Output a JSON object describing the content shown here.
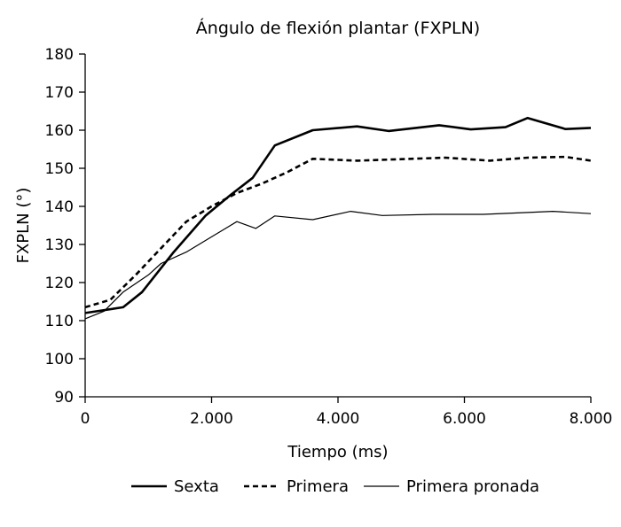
{
  "chart_data": {
    "type": "line",
    "title": "Ángulo de flexión plantar (FXPLN)",
    "xlabel": "Tiempo (ms)",
    "ylabel": "FXPLN (°)",
    "xlim": [
      0,
      8000
    ],
    "ylim": [
      90,
      180
    ],
    "x_ticks": [
      0,
      2000,
      4000,
      6000,
      8000
    ],
    "x_tick_labels": [
      "0",
      "2.000",
      "4.000",
      "6.000",
      "8.000"
    ],
    "y_ticks": [
      90,
      100,
      110,
      120,
      130,
      140,
      150,
      160,
      170,
      180
    ],
    "y_tick_labels": [
      "90",
      "100",
      "110",
      "120",
      "130",
      "140",
      "150",
      "160",
      "170",
      "180"
    ],
    "grid": false,
    "legend_position": "bottom",
    "series": [
      {
        "name": "Sexta",
        "line_style": "thick-solid",
        "color": "#000000",
        "points": [
          [
            0,
            112
          ],
          [
            600,
            113.5
          ],
          [
            900,
            117.5
          ],
          [
            1400,
            128
          ],
          [
            1900,
            137.5
          ],
          [
            2300,
            143
          ],
          [
            2650,
            147.5
          ],
          [
            3000,
            156
          ],
          [
            3600,
            160
          ],
          [
            4300,
            161
          ],
          [
            4800,
            159.8
          ],
          [
            5600,
            161.3
          ],
          [
            6100,
            160.2
          ],
          [
            6650,
            160.8
          ],
          [
            7000,
            163.2
          ],
          [
            7600,
            160.3
          ],
          [
            8000,
            160.6
          ]
        ]
      },
      {
        "name": "Primera",
        "line_style": "dashed",
        "color": "#000000",
        "points": [
          [
            0,
            113.5
          ],
          [
            400,
            115.5
          ],
          [
            800,
            122
          ],
          [
            1200,
            129
          ],
          [
            1600,
            136
          ],
          [
            2000,
            140
          ],
          [
            2400,
            143.5
          ],
          [
            2800,
            146
          ],
          [
            3200,
            149
          ],
          [
            3600,
            152.5
          ],
          [
            4300,
            152
          ],
          [
            5000,
            152.4
          ],
          [
            5700,
            152.8
          ],
          [
            6400,
            152
          ],
          [
            7000,
            152.8
          ],
          [
            7600,
            153
          ],
          [
            8000,
            152
          ]
        ]
      },
      {
        "name": "Primera pronada",
        "line_style": "thin-solid",
        "color": "#000000",
        "points": [
          [
            0,
            110.5
          ],
          [
            300,
            112.5
          ],
          [
            600,
            117.5
          ],
          [
            1000,
            122
          ],
          [
            1200,
            125
          ],
          [
            1600,
            128
          ],
          [
            2000,
            132
          ],
          [
            2400,
            136
          ],
          [
            2700,
            134.2
          ],
          [
            3000,
            137.5
          ],
          [
            3600,
            136.5
          ],
          [
            4200,
            138.7
          ],
          [
            4700,
            137.6
          ],
          [
            5500,
            137.9
          ],
          [
            6300,
            137.9
          ],
          [
            7000,
            138.4
          ],
          [
            7400,
            138.7
          ],
          [
            8000,
            138.1
          ]
        ]
      }
    ]
  }
}
